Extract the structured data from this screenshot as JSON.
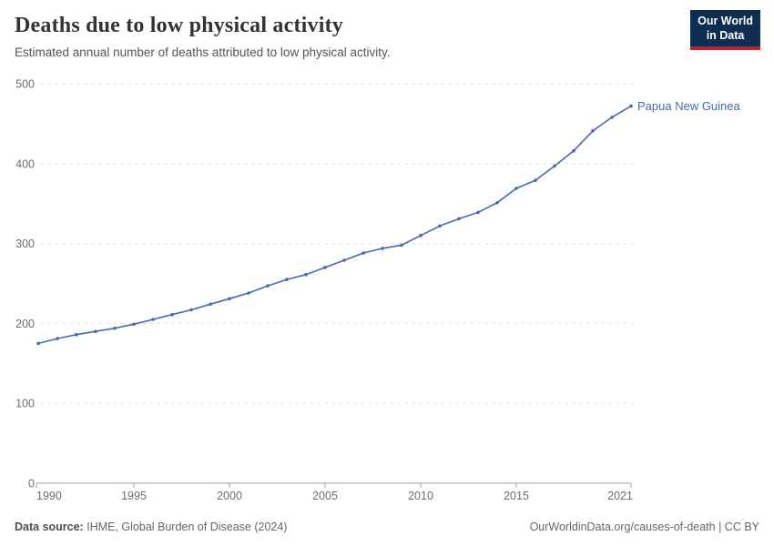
{
  "header": {
    "title": "Deaths due to low physical activity",
    "subtitle": "Estimated annual number of deaths attributed to low physical activity.",
    "logo": {
      "line1": "Our World",
      "line2": "in Data",
      "bg_color": "#0d2e51",
      "accent_color": "#c4222b"
    }
  },
  "chart_data": {
    "type": "line",
    "title": "Deaths due to low physical activity",
    "xlabel": "",
    "ylabel": "",
    "xlim": [
      1990,
      2021
    ],
    "ylim": [
      0,
      500
    ],
    "x_ticks": [
      1990,
      1995,
      2000,
      2005,
      2010,
      2015,
      2021
    ],
    "y_ticks": [
      0,
      100,
      200,
      300,
      400,
      500
    ],
    "grid": "horizontal-dashed",
    "legend": "end-of-line-label",
    "series": [
      {
        "name": "Papua New Guinea",
        "color": "#4a69a8",
        "x": [
          1990,
          1991,
          1992,
          1993,
          1994,
          1995,
          1996,
          1997,
          1998,
          1999,
          2000,
          2001,
          2002,
          2003,
          2004,
          2005,
          2006,
          2007,
          2008,
          2009,
          2010,
          2011,
          2012,
          2013,
          2014,
          2015,
          2016,
          2017,
          2018,
          2019,
          2020,
          2021
        ],
        "values": [
          175,
          181,
          186,
          190,
          194,
          199,
          205,
          211,
          217,
          224,
          231,
          238,
          247,
          255,
          261,
          270,
          279,
          288,
          294,
          298,
          310,
          322,
          331,
          339,
          351,
          369,
          379,
          397,
          416,
          441,
          458,
          472
        ]
      }
    ],
    "style": {
      "gridline_color": "#dcdcdc",
      "axis_color": "#a0a0a0",
      "tick_label_color": "#6d6d6d"
    }
  },
  "footer": {
    "source_label": "Data source:",
    "source_value": "IHME, Global Burden of Disease (2024)",
    "right_text": "OurWorldinData.org/causes-of-death | CC BY"
  }
}
